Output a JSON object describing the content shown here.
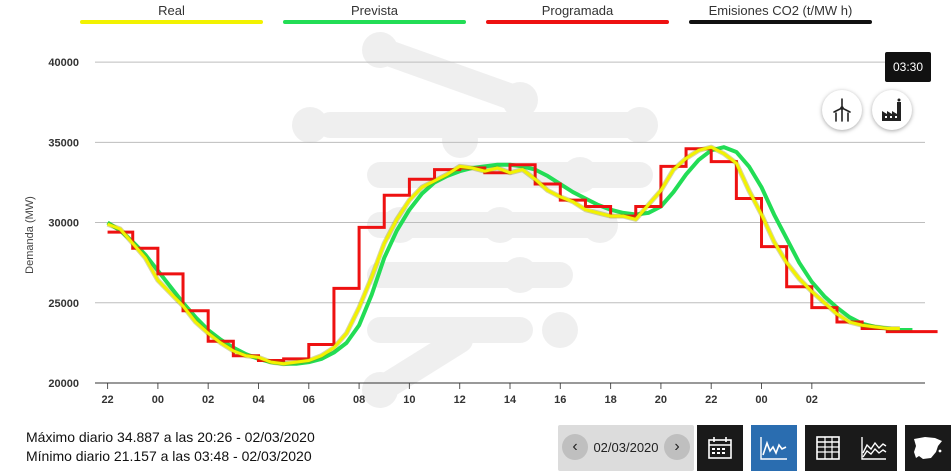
{
  "legend": [
    {
      "label": "Real",
      "color": "#f2f200"
    },
    {
      "label": "Prevista",
      "color": "#22dd55"
    },
    {
      "label": "Programada",
      "color": "#ee1111"
    },
    {
      "label": "Emisiones CO2 (t/MW h)",
      "color": "#111111"
    }
  ],
  "tooltip": "03:30",
  "stats": {
    "max": "Máximo diario 34.887 a las 20:26 - 02/03/2020",
    "min": "Mínimo diario 21.157 a las 03:48 - 02/03/2020"
  },
  "date_picker": {
    "value": "02/03/2020",
    "prev_icon": "chevron-left-icon",
    "next_icon": "chevron-right-icon"
  },
  "toolbar": [
    {
      "name": "calendar-icon",
      "active": false
    },
    {
      "name": "line-chart-icon",
      "active": true
    },
    {
      "name": "table-icon",
      "active": false
    },
    {
      "name": "area-chart-icon",
      "active": false
    },
    {
      "name": "spain-map-icon",
      "active": false
    }
  ],
  "chart_data": {
    "type": "line",
    "ylabel": "Demanda (MW)",
    "ylim": [
      20000,
      42000
    ],
    "yticks": [
      20000,
      25000,
      30000,
      35000,
      40000
    ],
    "x_hours": [
      -1.5,
      31.5
    ],
    "xticks": [
      {
        "h": -1,
        "label": "22"
      },
      {
        "h": 1,
        "label": "00"
      },
      {
        "h": 3,
        "label": "02"
      },
      {
        "h": 5,
        "label": "04"
      },
      {
        "h": 7,
        "label": "06"
      },
      {
        "h": 9,
        "label": "08"
      },
      {
        "h": 11,
        "label": "10"
      },
      {
        "h": 13,
        "label": "12"
      },
      {
        "h": 15,
        "label": "14"
      },
      {
        "h": 17,
        "label": "16"
      },
      {
        "h": 19,
        "label": "18"
      },
      {
        "h": 21,
        "label": "20"
      },
      {
        "h": 23,
        "label": "22"
      },
      {
        "h": 25,
        "label": "00"
      },
      {
        "h": 27,
        "label": "02"
      }
    ],
    "grid": true,
    "series": [
      {
        "name": "Prevista",
        "color": "#22dd55",
        "x": [
          -1,
          -0.5,
          0,
          0.5,
          1,
          1.5,
          2,
          2.5,
          3,
          3.5,
          4,
          4.5,
          5,
          5.5,
          6,
          6.5,
          7,
          7.5,
          8,
          8.5,
          9,
          9.5,
          10,
          10.5,
          11,
          11.5,
          12,
          12.5,
          13,
          13.5,
          14,
          14.5,
          15,
          15.5,
          16,
          16.5,
          17,
          17.5,
          18,
          18.5,
          19,
          19.5,
          20,
          20.5,
          21,
          21.5,
          22,
          22.5,
          23,
          23.5,
          24,
          24.5,
          25,
          25.5,
          26,
          26.5,
          27,
          27.5,
          28,
          28.5,
          29,
          29.5,
          30,
          30.5,
          31
        ],
        "y": [
          30000,
          29500,
          28800,
          28000,
          27000,
          26000,
          25000,
          24100,
          23300,
          22700,
          22200,
          21800,
          21500,
          21300,
          21200,
          21200,
          21300,
          21500,
          21900,
          22500,
          23600,
          25500,
          27800,
          29500,
          30800,
          31800,
          32500,
          32900,
          33200,
          33400,
          33500,
          33600,
          33600,
          33500,
          33300,
          32900,
          32400,
          31900,
          31500,
          31100,
          30800,
          30600,
          30500,
          30600,
          31000,
          31900,
          33000,
          33900,
          34500,
          34700,
          34400,
          33500,
          32200,
          30500,
          29000,
          27500,
          26300,
          25400,
          24700,
          24100,
          23700,
          23500,
          23400,
          23300,
          23300
        ]
      },
      {
        "name": "Programada",
        "color": "#ee1111",
        "x": [
          -1,
          0,
          1,
          2,
          3,
          4,
          5,
          6,
          7,
          8,
          9,
          10,
          11,
          12,
          13,
          14,
          15,
          16,
          17,
          18,
          19,
          20,
          21,
          22,
          23,
          24,
          25,
          26,
          27,
          28,
          29,
          30,
          31
        ],
        "y": [
          29400,
          28400,
          26800,
          24500,
          22600,
          21700,
          21400,
          21500,
          22400,
          25900,
          29700,
          31700,
          32700,
          33300,
          33400,
          33100,
          33600,
          32400,
          31400,
          31000,
          30400,
          31000,
          33500,
          34600,
          33800,
          31500,
          28500,
          26000,
          24700,
          23800,
          23400,
          23200,
          23200
        ]
      },
      {
        "name": "Real",
        "color": "#f2f200",
        "x": [
          -1,
          -0.5,
          0,
          0.5,
          1,
          1.5,
          2,
          2.5,
          3,
          3.5,
          4,
          4.5,
          5,
          5.5,
          6,
          6.5,
          7,
          7.5,
          8,
          8.5,
          9,
          9.5,
          10,
          10.5,
          11,
          11.5,
          12,
          12.5,
          13,
          13.5,
          14,
          14.5,
          15,
          15.5,
          16,
          16.5,
          17,
          17.5,
          18,
          18.5,
          19,
          19.5,
          20,
          20.5,
          21,
          21.5,
          22,
          22.5,
          23,
          23.5,
          24,
          24.5,
          25,
          25.5,
          26,
          26.5,
          27,
          27.5,
          28,
          28.5,
          29,
          29.5,
          30,
          30.5
        ],
        "y": [
          29900,
          29600,
          28700,
          27800,
          26400,
          25600,
          24800,
          23800,
          23100,
          22500,
          22000,
          21700,
          21600,
          21300,
          21200,
          21300,
          21400,
          21700,
          22200,
          23100,
          24700,
          26600,
          28700,
          30200,
          31400,
          32200,
          32600,
          33000,
          33500,
          33400,
          33200,
          33400,
          33100,
          33300,
          32700,
          32000,
          31600,
          31300,
          30800,
          30600,
          30400,
          30400,
          30200,
          31100,
          32000,
          33300,
          34000,
          34500,
          34700,
          34300,
          33700,
          32000,
          30500,
          28800,
          27500,
          26500,
          25700,
          25000,
          24300,
          23800,
          23600,
          23500,
          23400,
          23400
        ]
      }
    ]
  }
}
